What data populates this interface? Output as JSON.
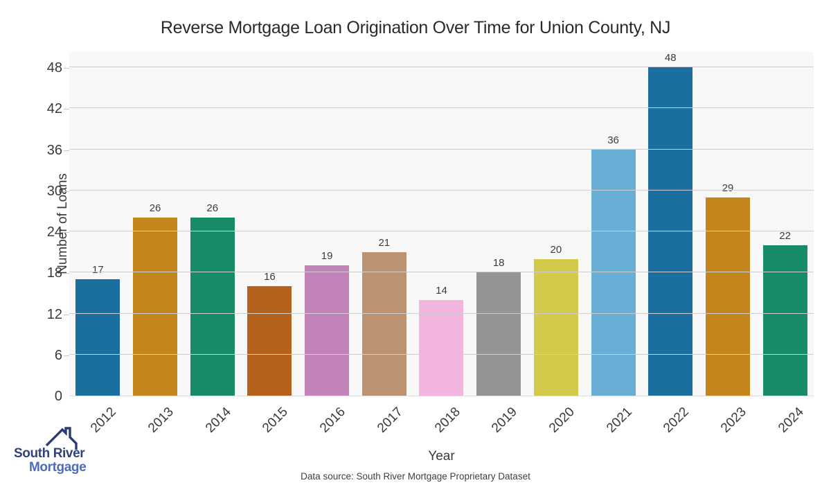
{
  "header": {
    "title": "Reverse Mortgage Loan Origination Over Time for Union County, NJ"
  },
  "chart_data": {
    "type": "bar",
    "title": "Reverse Mortgage Loan Origination Over Time for Union County, NJ",
    "categories": [
      "2012",
      "2013",
      "2014",
      "2015",
      "2016",
      "2017",
      "2018",
      "2019",
      "2020",
      "2021",
      "2022",
      "2023",
      "2024"
    ],
    "values": [
      17,
      26,
      26,
      16,
      19,
      21,
      14,
      18,
      20,
      36,
      48,
      29,
      22
    ],
    "bar_colors": [
      "#1a6f9e",
      "#c4861c",
      "#178a68",
      "#b5621d",
      "#c183b8",
      "#bd9270",
      "#f2b6de",
      "#949494",
      "#d4ca4a",
      "#69aed5",
      "#1a6f9e",
      "#c4861c",
      "#178a68"
    ],
    "xlabel": "Year",
    "ylabel": "Number of Loans",
    "yticks": [
      0,
      6,
      12,
      18,
      24,
      30,
      36,
      42,
      48
    ],
    "ylim": [
      0,
      50.3
    ],
    "grid": true,
    "legend": "none",
    "plot_background": "#f8f8f9",
    "grid_color": "#cecece"
  },
  "footer": {
    "data_source": "Data source: South River Mortgage Proprietary Dataset"
  },
  "logo": {
    "line1": "South River",
    "line2": "Mortgage",
    "navy": "#33427c",
    "blue": "#4d6cba",
    "house_icon": "house-roof-with-chimney"
  }
}
